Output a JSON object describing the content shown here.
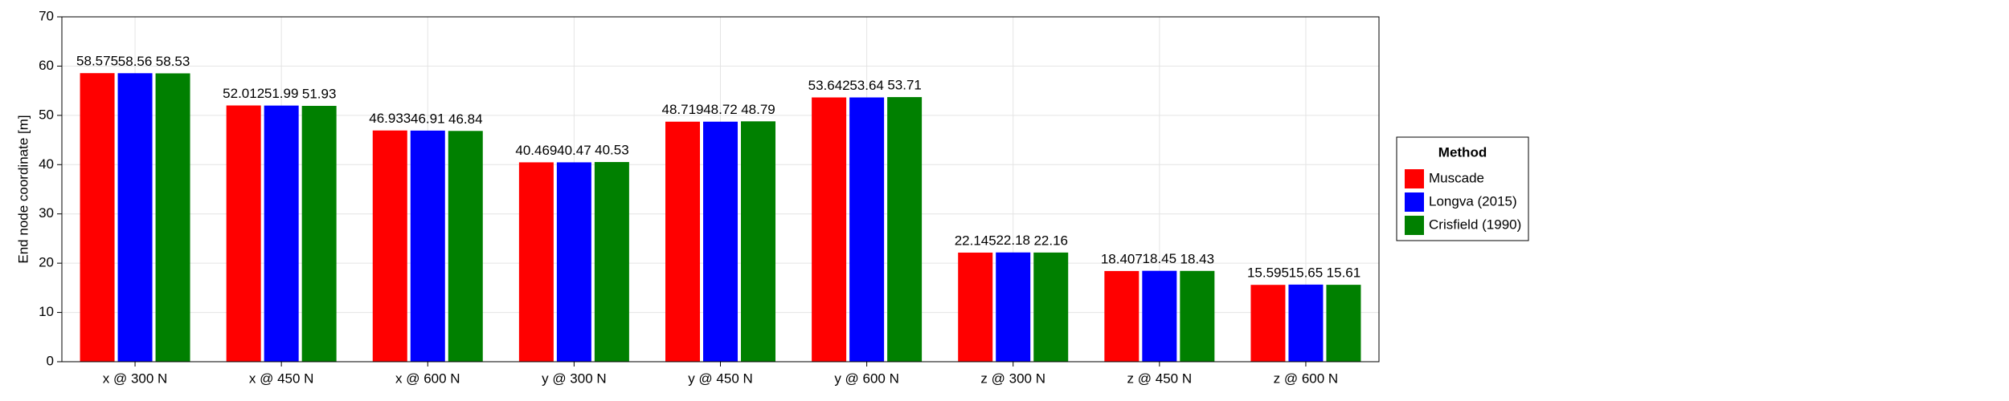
{
  "chart_data": {
    "type": "bar",
    "y_label": "End node coordinate [m]",
    "legend_title": "Method",
    "legend_position": "right",
    "categories": [
      "x @ 300 N",
      "x @ 450 N",
      "x @ 600 N",
      "y @ 300 N",
      "y @ 450 N",
      "y @ 600 N",
      "z @ 300 N",
      "z @ 450 N",
      "z @ 600 N"
    ],
    "series": [
      {
        "name": "Muscade",
        "color": "#ff0000",
        "values": [
          58.575,
          52.012,
          46.933,
          40.469,
          48.719,
          53.642,
          22.145,
          18.407,
          15.595
        ]
      },
      {
        "name": "Longva (2015)",
        "color": "#0000ff",
        "values": [
          58.56,
          51.99,
          46.91,
          40.47,
          48.72,
          53.64,
          22.18,
          18.45,
          15.65
        ]
      },
      {
        "name": "Crisfield (1990)",
        "color": "#008000",
        "values": [
          58.53,
          51.93,
          46.84,
          40.53,
          48.79,
          53.71,
          22.16,
          18.43,
          15.61
        ]
      }
    ],
    "ylim": [
      0,
      70
    ],
    "yticks": [
      0,
      10,
      20,
      30,
      40,
      50,
      60,
      70
    ],
    "grid": true
  }
}
